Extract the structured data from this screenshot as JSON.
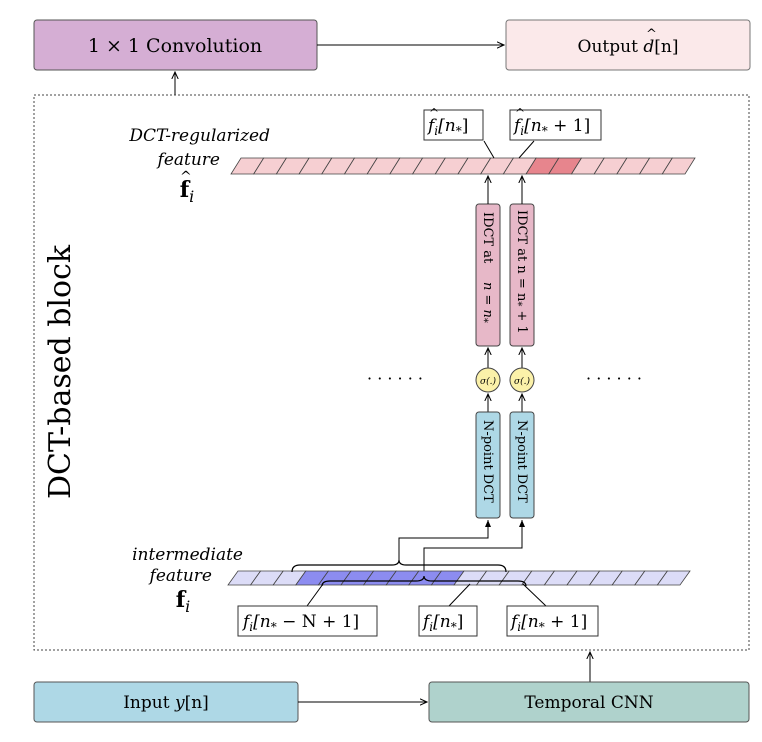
{
  "diagram": {
    "top": {
      "conv_label": "1 × 1 Convolution",
      "output_prefix": "Output ",
      "output_var": "d",
      "output_suffix": "[n]"
    },
    "block": {
      "title": "DCT-based block"
    },
    "upper": {
      "label_line1": "DCT-regularized",
      "label_line2": "feature",
      "symbol": "f",
      "subscript": "i",
      "cell_count": 20,
      "highlight_cells": [
        13,
        14
      ],
      "tag1_var": "f",
      "tag1_sub": "i",
      "tag1_arg": "[n",
      "tag1_star": "*",
      "tag1_close": "]",
      "tag2_var": "f",
      "tag2_sub": "i",
      "tag2_arg": "[n",
      "tag2_star": "*",
      "tag2_close": " + 1]"
    },
    "lower": {
      "label_line1": "intermediate",
      "label_line2": "feature",
      "symbol": "f",
      "subscript": "i",
      "cell_count": 20,
      "highlight_range": [
        3,
        9
      ],
      "tag_left_var": "f",
      "tag_left_sub": "i",
      "tag_left_arg": "[n",
      "tag_left_star": "*",
      "tag_left_close": " − N + 1]",
      "tag_mid_var": "f",
      "tag_mid_sub": "i",
      "tag_mid_arg": "[n",
      "tag_mid_star": "*",
      "tag_mid_close": "]",
      "tag_right_var": "f",
      "tag_right_sub": "i",
      "tag_right_arg": "[n",
      "tag_right_star": "*",
      "tag_right_close": " + 1]"
    },
    "idct": {
      "col1_line1": "IDCT at",
      "col1_line2": "n = n",
      "col1_star": "*",
      "col2_line1": "IDCT at n = n",
      "col2_star": "*",
      "col2_end": " + 1"
    },
    "sigma": {
      "label": "σ(.)"
    },
    "dct": {
      "col1": "N-point DCT",
      "col2": "N-point DCT"
    },
    "dots": {
      "left": "· · · · · ·",
      "right": "· · · · · ·"
    },
    "bottom": {
      "input_prefix": "Input ",
      "input_var": "y",
      "input_suffix": "[n]",
      "cnn_label": "Temporal CNN"
    },
    "colors": {
      "conv_fill": "#d5aed4",
      "output_fill": "#fbe9ea",
      "upper_strip": "#f6cfd2",
      "upper_highlight": "#e7858d",
      "lower_strip": "#dcdcf7",
      "lower_highlight": "#8c8cf0",
      "idct_fill": "#e7b8c8",
      "dct_fill": "#aed8e6",
      "sigma_fill": "#fbf1a9",
      "input_fill": "#aed8e6",
      "cnn_fill": "#afd2cc"
    }
  }
}
